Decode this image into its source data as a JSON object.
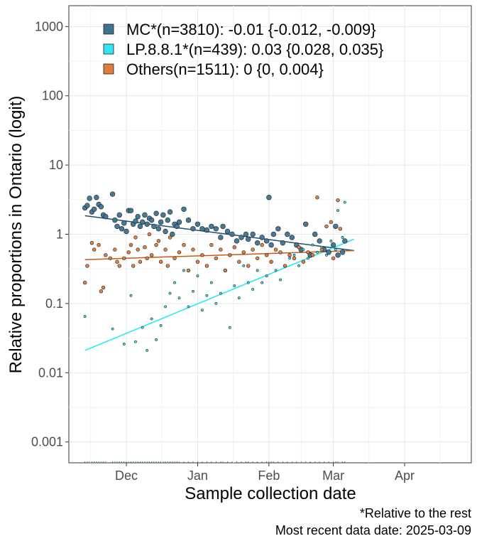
{
  "chart_data": {
    "type": "scatter",
    "y_scale": "logit",
    "xlabel": "Sample collection date",
    "ylabel": "Relative proportions in Ontario (logit)",
    "xlim": [
      "2024-11-06",
      "2025-04-30"
    ],
    "ylim": [
      0.0005,
      2000
    ],
    "x_ticks": [
      {
        "date": "2024-12-01",
        "label": "Dec"
      },
      {
        "date": "2025-01-01",
        "label": "Jan"
      },
      {
        "date": "2025-02-01",
        "label": "Feb"
      },
      {
        "date": "2025-03-01",
        "label": "Mar"
      },
      {
        "date": "2025-04-01",
        "label": "Apr"
      }
    ],
    "y_ticks": [
      {
        "value": 0.001,
        "label": "0.001"
      },
      {
        "value": 0.01,
        "label": "0.01"
      },
      {
        "value": 0.1,
        "label": "0.1"
      },
      {
        "value": 1,
        "label": "1"
      },
      {
        "value": 10,
        "label": "10"
      },
      {
        "value": 100,
        "label": "100"
      },
      {
        "value": 1000,
        "label": "1000"
      }
    ],
    "grid": true,
    "legend_position": "top-left",
    "series": [
      {
        "name": "MC*(n=3810): -0.01 {-0.012, -0.009}",
        "color": "#3d7391",
        "fit_color": "#1c4e6e",
        "fit": [
          {
            "x": "2024-11-13",
            "y": 1.85
          },
          {
            "x": "2025-03-10",
            "y": 0.58
          }
        ],
        "points": [
          {
            "x": "2024-11-13",
            "y": 2.4
          },
          {
            "x": "2024-11-14",
            "y": 2.6
          },
          {
            "x": "2024-11-15",
            "y": 3.3
          },
          {
            "x": "2024-11-16",
            "y": 2.1
          },
          {
            "x": "2024-11-17",
            "y": 2.3
          },
          {
            "x": "2024-11-18",
            "y": 3.4
          },
          {
            "x": "2024-11-19",
            "y": 2.7
          },
          {
            "x": "2024-11-20",
            "y": 2.5
          },
          {
            "x": "2024-11-21",
            "y": 1.9
          },
          {
            "x": "2024-11-22",
            "y": 1.8
          },
          {
            "x": "2024-11-25",
            "y": 3.8
          },
          {
            "x": "2024-11-26",
            "y": 1.6
          },
          {
            "x": "2024-11-27",
            "y": 1.3
          },
          {
            "x": "2024-11-28",
            "y": 1.9
          },
          {
            "x": "2024-11-29",
            "y": 1.2
          },
          {
            "x": "2024-11-30",
            "y": 1.45
          },
          {
            "x": "2024-12-01",
            "y": 1.1
          },
          {
            "x": "2024-12-02",
            "y": 2.2
          },
          {
            "x": "2024-12-03",
            "y": 2.2
          },
          {
            "x": "2024-12-04",
            "y": 1.4
          },
          {
            "x": "2024-12-05",
            "y": 1.55
          },
          {
            "x": "2024-12-06",
            "y": 1.8
          },
          {
            "x": "2024-12-07",
            "y": 1.3
          },
          {
            "x": "2024-12-08",
            "y": 1.5
          },
          {
            "x": "2024-12-09",
            "y": 1.9
          },
          {
            "x": "2024-12-10",
            "y": 1.4
          },
          {
            "x": "2024-12-11",
            "y": 1.7
          },
          {
            "x": "2024-12-12",
            "y": 1.6
          },
          {
            "x": "2024-12-13",
            "y": 1.3
          },
          {
            "x": "2024-12-14",
            "y": 2.0
          },
          {
            "x": "2024-12-15",
            "y": 1.2
          },
          {
            "x": "2024-12-16",
            "y": 1.5
          },
          {
            "x": "2024-12-17",
            "y": 1.9
          },
          {
            "x": "2024-12-18",
            "y": 1.1
          },
          {
            "x": "2024-12-19",
            "y": 1.6
          },
          {
            "x": "2024-12-20",
            "y": 2.1
          },
          {
            "x": "2024-12-21",
            "y": 1.0
          },
          {
            "x": "2024-12-22",
            "y": 1.4
          },
          {
            "x": "2024-12-23",
            "y": 1.3
          },
          {
            "x": "2024-12-24",
            "y": 1.5
          },
          {
            "x": "2024-12-26",
            "y": 2.3
          },
          {
            "x": "2024-12-28",
            "y": 1.6
          },
          {
            "x": "2024-12-30",
            "y": 1.2
          },
          {
            "x": "2025-01-01",
            "y": 1.4
          },
          {
            "x": "2025-01-03",
            "y": 1.2
          },
          {
            "x": "2025-01-05",
            "y": 1.15
          },
          {
            "x": "2025-01-07",
            "y": 1.3
          },
          {
            "x": "2025-01-09",
            "y": 1.2
          },
          {
            "x": "2025-01-11",
            "y": 0.9
          },
          {
            "x": "2025-01-12",
            "y": 1.3
          },
          {
            "x": "2025-01-14",
            "y": 1.1
          },
          {
            "x": "2025-01-16",
            "y": 1.0
          },
          {
            "x": "2025-01-18",
            "y": 0.8
          },
          {
            "x": "2025-01-20",
            "y": 0.9
          },
          {
            "x": "2025-01-22",
            "y": 1.0
          },
          {
            "x": "2025-01-23",
            "y": 0.85
          },
          {
            "x": "2025-01-25",
            "y": 1.0
          },
          {
            "x": "2025-01-27",
            "y": 0.75
          },
          {
            "x": "2025-01-29",
            "y": 0.9
          },
          {
            "x": "2025-01-31",
            "y": 0.8
          },
          {
            "x": "2025-02-01",
            "y": 3.4
          },
          {
            "x": "2025-02-02",
            "y": 0.7
          },
          {
            "x": "2025-02-03",
            "y": 1.0
          },
          {
            "x": "2025-02-05",
            "y": 1.2
          },
          {
            "x": "2025-02-07",
            "y": 0.75
          },
          {
            "x": "2025-02-09",
            "y": 1.0
          },
          {
            "x": "2025-02-11",
            "y": 0.9
          },
          {
            "x": "2025-02-13",
            "y": 0.7
          },
          {
            "x": "2025-02-15",
            "y": 0.6
          },
          {
            "x": "2025-02-17",
            "y": 1.4
          },
          {
            "x": "2025-02-19",
            "y": 0.5
          },
          {
            "x": "2025-02-21",
            "y": 1.0
          },
          {
            "x": "2025-02-23",
            "y": 0.8
          },
          {
            "x": "2025-02-25",
            "y": 0.6
          },
          {
            "x": "2025-02-27",
            "y": 0.55
          },
          {
            "x": "2025-03-01",
            "y": 0.7
          },
          {
            "x": "2025-03-02",
            "y": 1.3
          },
          {
            "x": "2025-03-03",
            "y": 0.5
          },
          {
            "x": "2025-03-05",
            "y": 0.55
          },
          {
            "x": "2025-03-06",
            "y": 0.8
          }
        ]
      },
      {
        "name": "LP.8.8.1*(n=439): 0.03 {0.028, 0.035}",
        "color": "#33e5f5",
        "fit_color": "#1ee8f7",
        "fit": [
          {
            "x": "2024-11-13",
            "y": 0.021
          },
          {
            "x": "2025-03-10",
            "y": 0.85
          }
        ],
        "points": [
          {
            "x": "2024-11-13",
            "y": 0.065
          },
          {
            "x": "2024-11-25",
            "y": 0.043
          },
          {
            "x": "2024-11-30",
            "y": 0.026
          },
          {
            "x": "2024-12-03",
            "y": 0.13
          },
          {
            "x": "2024-12-05",
            "y": 0.028
          },
          {
            "x": "2024-12-08",
            "y": 0.045
          },
          {
            "x": "2024-12-10",
            "y": 0.021
          },
          {
            "x": "2024-12-12",
            "y": 0.06
          },
          {
            "x": "2024-12-14",
            "y": 0.03
          },
          {
            "x": "2024-12-16",
            "y": 0.048
          },
          {
            "x": "2024-12-18",
            "y": 0.09
          },
          {
            "x": "2024-12-20",
            "y": 0.14
          },
          {
            "x": "2024-12-22",
            "y": 0.2
          },
          {
            "x": "2024-12-24",
            "y": 0.12
          },
          {
            "x": "2024-12-26",
            "y": 0.3
          },
          {
            "x": "2024-12-28",
            "y": 0.09
          },
          {
            "x": "2024-12-30",
            "y": 0.15
          },
          {
            "x": "2025-01-01",
            "y": 0.25
          },
          {
            "x": "2025-01-03",
            "y": 0.08
          },
          {
            "x": "2025-01-05",
            "y": 0.13
          },
          {
            "x": "2025-01-07",
            "y": 0.2
          },
          {
            "x": "2025-01-09",
            "y": 0.1
          },
          {
            "x": "2025-01-11",
            "y": 0.14
          },
          {
            "x": "2025-01-13",
            "y": 0.3
          },
          {
            "x": "2025-01-15",
            "y": 0.045
          },
          {
            "x": "2025-01-17",
            "y": 0.18
          },
          {
            "x": "2025-01-19",
            "y": 0.12
          },
          {
            "x": "2025-01-21",
            "y": 0.35
          },
          {
            "x": "2025-01-23",
            "y": 0.2
          },
          {
            "x": "2025-01-25",
            "y": 0.16
          },
          {
            "x": "2025-01-27",
            "y": 0.3
          },
          {
            "x": "2025-01-29",
            "y": 0.2
          },
          {
            "x": "2025-01-31",
            "y": 0.25
          },
          {
            "x": "2025-02-02",
            "y": 0.4
          },
          {
            "x": "2025-02-04",
            "y": 0.3
          },
          {
            "x": "2025-02-06",
            "y": 0.22
          },
          {
            "x": "2025-02-08",
            "y": 0.35
          },
          {
            "x": "2025-02-10",
            "y": 0.45
          },
          {
            "x": "2025-02-12",
            "y": 0.5
          },
          {
            "x": "2025-02-14",
            "y": 0.35
          },
          {
            "x": "2025-02-16",
            "y": 0.6
          },
          {
            "x": "2025-02-18",
            "y": 0.45
          },
          {
            "x": "2025-02-20",
            "y": 0.7
          },
          {
            "x": "2025-02-22",
            "y": 0.55
          },
          {
            "x": "2025-02-24",
            "y": 0.65
          },
          {
            "x": "2025-02-26",
            "y": 0.5
          },
          {
            "x": "2025-02-28",
            "y": 0.8
          },
          {
            "x": "2025-03-02",
            "y": 0.6
          },
          {
            "x": "2025-03-03",
            "y": 2.2
          },
          {
            "x": "2025-03-05",
            "y": 0.9
          },
          {
            "x": "2025-03-06",
            "y": 2.9
          }
        ]
      },
      {
        "name": "Others(n=1511): 0 {0, 0.004}",
        "color": "#e07b39",
        "fit_color": "#c85a14",
        "fit": [
          {
            "x": "2024-11-13",
            "y": 0.43
          },
          {
            "x": "2025-03-10",
            "y": 0.58
          }
        ],
        "points": [
          {
            "x": "2024-11-13",
            "y": 0.2
          },
          {
            "x": "2024-11-14",
            "y": 0.35
          },
          {
            "x": "2024-11-16",
            "y": 0.75
          },
          {
            "x": "2024-11-17",
            "y": 0.6
          },
          {
            "x": "2024-11-19",
            "y": 0.7
          },
          {
            "x": "2024-11-20",
            "y": 0.15
          },
          {
            "x": "2024-11-21",
            "y": 0.17
          },
          {
            "x": "2024-11-22",
            "y": 0.5
          },
          {
            "x": "2024-11-24",
            "y": 0.45
          },
          {
            "x": "2024-11-26",
            "y": 0.6
          },
          {
            "x": "2024-11-27",
            "y": 0.4
          },
          {
            "x": "2024-11-28",
            "y": 0.35
          },
          {
            "x": "2024-11-30",
            "y": 0.45
          },
          {
            "x": "2024-12-02",
            "y": 0.55
          },
          {
            "x": "2024-12-03",
            "y": 0.7
          },
          {
            "x": "2024-12-04",
            "y": 0.35
          },
          {
            "x": "2024-12-05",
            "y": 0.9
          },
          {
            "x": "2024-12-06",
            "y": 0.6
          },
          {
            "x": "2024-12-07",
            "y": 0.4
          },
          {
            "x": "2024-12-09",
            "y": 0.65
          },
          {
            "x": "2024-12-10",
            "y": 0.45
          },
          {
            "x": "2024-12-11",
            "y": 1.0
          },
          {
            "x": "2024-12-12",
            "y": 0.5
          },
          {
            "x": "2024-12-14",
            "y": 0.7
          },
          {
            "x": "2024-12-15",
            "y": 0.8
          },
          {
            "x": "2024-12-16",
            "y": 0.4
          },
          {
            "x": "2024-12-18",
            "y": 0.6
          },
          {
            "x": "2024-12-19",
            "y": 0.35
          },
          {
            "x": "2024-12-20",
            "y": 0.9
          },
          {
            "x": "2024-12-22",
            "y": 0.45
          },
          {
            "x": "2024-12-24",
            "y": 0.55
          },
          {
            "x": "2024-12-26",
            "y": 0.7
          },
          {
            "x": "2024-12-28",
            "y": 0.3
          },
          {
            "x": "2024-12-30",
            "y": 0.6
          },
          {
            "x": "2025-01-01",
            "y": 0.4
          },
          {
            "x": "2025-01-03",
            "y": 0.5
          },
          {
            "x": "2025-01-05",
            "y": 0.35
          },
          {
            "x": "2025-01-07",
            "y": 0.7
          },
          {
            "x": "2025-01-09",
            "y": 0.45
          },
          {
            "x": "2025-01-11",
            "y": 0.6
          },
          {
            "x": "2025-01-13",
            "y": 0.3
          },
          {
            "x": "2025-01-15",
            "y": 0.5
          },
          {
            "x": "2025-01-17",
            "y": 0.65
          },
          {
            "x": "2025-01-19",
            "y": 0.4
          },
          {
            "x": "2025-01-21",
            "y": 0.55
          },
          {
            "x": "2025-01-23",
            "y": 0.35
          },
          {
            "x": "2025-01-25",
            "y": 0.6
          },
          {
            "x": "2025-01-27",
            "y": 0.45
          },
          {
            "x": "2025-01-29",
            "y": 0.7
          },
          {
            "x": "2025-01-31",
            "y": 0.5
          },
          {
            "x": "2025-02-02",
            "y": 0.4
          },
          {
            "x": "2025-02-04",
            "y": 0.6
          },
          {
            "x": "2025-02-06",
            "y": 0.55
          },
          {
            "x": "2025-02-08",
            "y": 0.35
          },
          {
            "x": "2025-02-10",
            "y": 0.5
          },
          {
            "x": "2025-02-12",
            "y": 0.45
          },
          {
            "x": "2025-02-14",
            "y": 0.65
          },
          {
            "x": "2025-02-16",
            "y": 0.4
          },
          {
            "x": "2025-02-18",
            "y": 0.55
          },
          {
            "x": "2025-02-20",
            "y": 0.5
          },
          {
            "x": "2025-02-22",
            "y": 3.4
          },
          {
            "x": "2025-02-24",
            "y": 0.6
          },
          {
            "x": "2025-02-26",
            "y": 1.3
          },
          {
            "x": "2025-02-28",
            "y": 1.5
          },
          {
            "x": "2025-03-01",
            "y": 0.45
          },
          {
            "x": "2025-03-03",
            "y": 3.1
          },
          {
            "x": "2025-03-04",
            "y": 1.2
          }
        ]
      }
    ]
  },
  "captions": {
    "line1": "*Relative to the rest",
    "line2": "Most recent data date: 2025-03-09"
  }
}
